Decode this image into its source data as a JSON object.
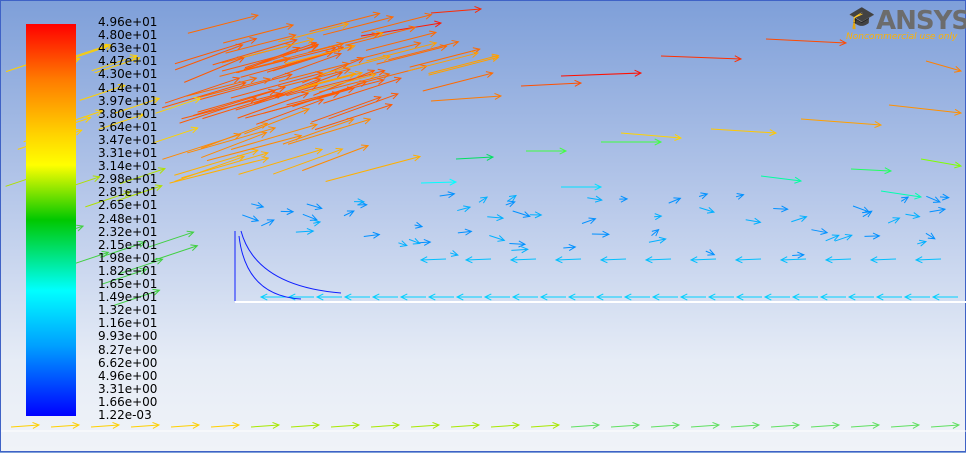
{
  "legend": {
    "labels": [
      "4.96e+01",
      "4.80e+01",
      "4.63e+01",
      "4.47e+01",
      "4.30e+01",
      "4.14e+01",
      "3.97e+01",
      "3.80e+01",
      "3.64e+01",
      "3.47e+01",
      "3.31e+01",
      "3.14e+01",
      "2.98e+01",
      "2.81e+01",
      "2.65e+01",
      "2.48e+01",
      "2.32e+01",
      "2.15e+01",
      "1.98e+01",
      "1.82e+01",
      "1.65e+01",
      "1.49e+01",
      "1.32e+01",
      "1.16e+01",
      "9.93e+00",
      "8.27e+00",
      "6.62e+00",
      "4.96e+00",
      "3.31e+00",
      "1.66e+00",
      "1.22e-03"
    ],
    "colors": [
      "#ff0000",
      "#ff7a00",
      "#ffd200",
      "#ffff00",
      "#00c800",
      "#00ffff",
      "#00a0ff",
      "#0000ff"
    ]
  },
  "logo": {
    "name": "ANSYS",
    "subtitle": "Noncommercial use only",
    "icon": "graduation-cap-icon"
  },
  "vector_field": {
    "description_icon": "velocity-vector-arrows"
  }
}
